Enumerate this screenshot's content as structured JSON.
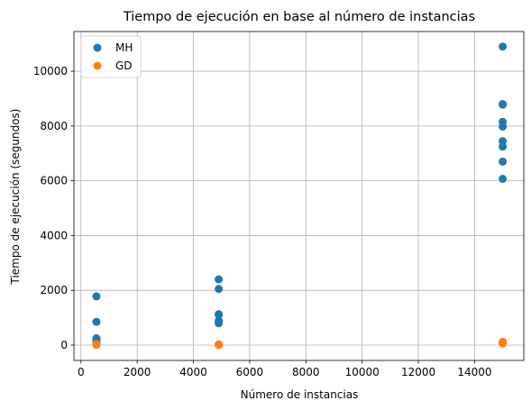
{
  "chart_data": {
    "type": "scatter",
    "title": "Tiempo de ejecución en base al número de instancias",
    "xlabel": "Número de instancias",
    "ylabel": "Tiempo de ejecución (segundos)",
    "xlim": [
      -250,
      15750
    ],
    "ylim": [
      -560,
      11450
    ],
    "xticks": [
      0,
      2000,
      4000,
      6000,
      8000,
      10000,
      12000,
      14000
    ],
    "xtick_labels": [
      "0",
      "2000",
      "4000",
      "6000",
      "8000",
      "10000",
      "12000",
      "14000"
    ],
    "yticks": [
      0,
      2000,
      4000,
      6000,
      8000,
      10000
    ],
    "ytick_labels": [
      "0",
      "2000",
      "4000",
      "6000",
      "8000",
      "10000"
    ],
    "grid": true,
    "legend": "top-left",
    "series": [
      {
        "name": "MH",
        "color": "#1f77b4",
        "points": [
          [
            550,
            1780
          ],
          [
            550,
            850
          ],
          [
            550,
            250
          ],
          [
            550,
            180
          ],
          [
            550,
            100
          ],
          [
            550,
            50
          ],
          [
            4900,
            2400
          ],
          [
            4900,
            2050
          ],
          [
            4900,
            1130
          ],
          [
            4900,
            1100
          ],
          [
            4900,
            880
          ],
          [
            4900,
            800
          ],
          [
            15000,
            10900
          ],
          [
            15000,
            8800
          ],
          [
            15000,
            8780
          ],
          [
            15000,
            8150
          ],
          [
            15000,
            7980
          ],
          [
            15000,
            7450
          ],
          [
            15000,
            7250
          ],
          [
            15000,
            6700
          ],
          [
            15000,
            6070
          ]
        ]
      },
      {
        "name": "GD",
        "color": "#ff7f0e",
        "points": [
          [
            550,
            10
          ],
          [
            550,
            20
          ],
          [
            550,
            30
          ],
          [
            550,
            40
          ],
          [
            4900,
            5
          ],
          [
            4900,
            15
          ],
          [
            4900,
            25
          ],
          [
            15000,
            60
          ],
          [
            15000,
            90
          ],
          [
            15000,
            120
          ]
        ]
      }
    ]
  }
}
